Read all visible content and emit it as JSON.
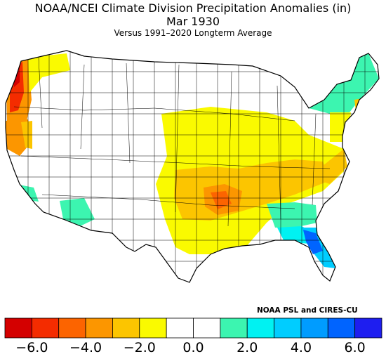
{
  "title": "NOAA/NCEI Climate Division Precipitation Anomalies (in)",
  "period": "Mar 1930",
  "subtitle": "Versus 1991–2020 Longterm Average",
  "credit": "NOAA PSL and CIRES-CU",
  "legend": {
    "colors": [
      "#d40000",
      "#f42c00",
      "#fc6400",
      "#fc9600",
      "#fcc500",
      "#fafa00",
      "#ffffff",
      "#ffffff",
      "#3cf5b0",
      "#00f2f2",
      "#00cdff",
      "#009cff",
      "#0064ff",
      "#1e1ef0"
    ],
    "ticks": [
      {
        "label": "−6.0",
        "value": -6
      },
      {
        "label": "−4.0",
        "value": -4
      },
      {
        "label": "−2.0",
        "value": -2
      },
      {
        "label": "0.0",
        "value": 0
      },
      {
        "label": "2.0",
        "value": 2
      },
      {
        "label": "4.0",
        "value": 4
      },
      {
        "label": "6.0",
        "value": 6
      }
    ],
    "min": -7,
    "max": 7
  },
  "map": {
    "region": "Contiguous United States climate divisions",
    "fill_palette": {
      "dry_strong": "#d40000",
      "dry_moderate": "#fc9600",
      "dry_light": "#fcc500",
      "dry_slight": "#fafa00",
      "wet_slight": "#3cf5b0",
      "wet_moderate": "#00cdff",
      "wet_strong": "#0064ff"
    }
  }
}
